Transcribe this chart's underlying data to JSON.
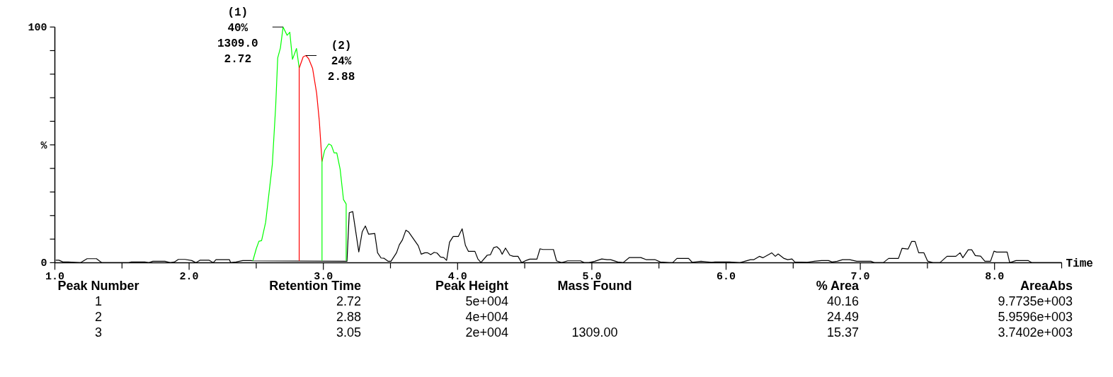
{
  "chart_data": {
    "type": "line",
    "xlabel": "Time",
    "xlim": [
      1,
      8.5
    ],
    "xticks": [
      {
        "value": 1,
        "label": "1.0"
      },
      {
        "value": 1.5,
        "label": null
      },
      {
        "value": 2,
        "label": "2.0"
      },
      {
        "value": 2.5,
        "label": null
      },
      {
        "value": 3,
        "label": "3.0"
      },
      {
        "value": 3.5,
        "label": null
      },
      {
        "value": 4,
        "label": "4.0"
      },
      {
        "value": 4.5,
        "label": null
      },
      {
        "value": 5,
        "label": "5.0"
      },
      {
        "value": 5.5,
        "label": null
      },
      {
        "value": 6,
        "label": "6.0"
      },
      {
        "value": 6.5,
        "label": null
      },
      {
        "value": 7,
        "label": "7.0"
      },
      {
        "value": 7.5,
        "label": null
      },
      {
        "value": 8,
        "label": "8.0"
      },
      {
        "value": 8.5,
        "label": null
      }
    ],
    "ylim": [
      0,
      100
    ],
    "yticks": [
      0,
      {
        "value": 10,
        "label": null
      },
      {
        "value": 20,
        "label": null
      },
      {
        "value": 30,
        "label": null
      },
      {
        "value": 40,
        "label": null
      },
      {
        "value": 50,
        "label": "%"
      },
      {
        "value": 60,
        "label": null
      },
      {
        "value": 70,
        "label": null
      },
      {
        "value": 80,
        "label": null
      },
      {
        "value": 90,
        "label": null
      },
      100
    ],
    "series": [
      {
        "color": "#000000",
        "x": [
          1.006,
          1.03,
          1.06,
          1.1,
          1.19,
          1.24,
          1.31,
          1.35,
          1.55,
          1.57,
          1.67,
          1.7,
          1.73,
          1.82,
          1.86,
          1.89,
          1.92,
          1.97,
          2.02,
          2.05,
          2.08,
          2.15,
          2.18,
          2.2,
          2.3,
          2.31,
          2.35,
          2.4,
          2.46,
          2.475,
          3.176,
          3.193,
          3.219,
          3.264,
          3.29,
          3.313,
          3.337,
          3.383,
          3.404,
          3.43,
          3.451,
          3.483,
          3.504,
          3.545,
          3.566,
          3.589,
          3.615,
          3.636,
          3.707,
          3.729,
          3.756,
          3.777,
          3.8,
          3.826,
          3.847,
          3.873,
          3.897,
          3.918,
          3.94,
          3.967,
          4.005,
          4.034,
          4.058,
          4.081,
          4.129,
          4.151,
          4.174,
          4.221,
          4.245,
          4.269,
          4.292,
          4.315,
          4.332,
          4.357,
          4.389,
          4.415,
          4.45,
          4.477,
          4.512,
          4.538,
          4.591,
          4.614,
          4.635,
          4.714,
          4.737,
          4.775,
          4.82,
          4.916,
          4.943,
          4.978,
          5.022,
          5.074,
          5.114,
          5.14,
          5.193,
          5.233,
          5.28,
          5.365,
          5.404,
          5.47,
          5.51,
          5.576,
          5.602,
          5.634,
          5.721,
          5.747,
          5.813,
          5.892,
          5.918,
          6.024,
          6.103,
          6.182,
          6.208,
          6.248,
          6.274,
          6.34,
          6.367,
          6.388,
          6.432,
          6.459,
          6.491,
          6.512,
          6.604,
          6.657,
          6.71,
          6.763,
          6.789,
          6.828,
          6.868,
          6.921,
          6.973,
          7.079,
          7.105,
          7.171,
          7.211,
          7.284,
          7.311,
          7.356,
          7.382,
          7.408,
          7.435,
          7.474,
          7.501,
          7.54,
          7.593,
          7.646,
          7.712,
          7.743,
          7.764,
          7.804,
          7.83,
          7.857,
          7.896,
          7.928,
          7.97,
          7.996,
          8.015,
          8.094,
          8.113,
          8.16,
          8.252,
          8.278,
          8.5
        ],
        "values": [
          1.05,
          1.05,
          0.3,
          0.3,
          0,
          1.7,
          1.7,
          0,
          0,
          0.3,
          0.3,
          0,
          0.6,
          0.6,
          0,
          0.3,
          1.4,
          1.4,
          0.9,
          0,
          1.05,
          1.05,
          0,
          1.3,
          1.3,
          0,
          0.3,
          0.9,
          0.9,
          0.8,
          0.6,
          21.2,
          21.7,
          4.6,
          13.2,
          15.6,
          12.1,
          12.4,
          4.2,
          2,
          1.9,
          0.6,
          0.6,
          4.2,
          7.6,
          9.7,
          13.8,
          13,
          7.2,
          3.6,
          4.2,
          4.2,
          3.4,
          4.4,
          4.1,
          2.4,
          2.2,
          1,
          8.7,
          11.1,
          11.1,
          14.4,
          7.4,
          4.8,
          4.8,
          1.6,
          0.1,
          3.2,
          3.4,
          6.4,
          6.8,
          5.6,
          3.6,
          6.2,
          3.2,
          2.7,
          2.7,
          0,
          1,
          1.5,
          1.5,
          5.9,
          5.6,
          5.6,
          0.8,
          0,
          0.8,
          0.8,
          0,
          0,
          0.6,
          1.6,
          1.3,
          1.3,
          0.3,
          0,
          2.2,
          2.2,
          1.3,
          1.3,
          0.3,
          0,
          0,
          1.8,
          1.8,
          0.2,
          0.6,
          0.2,
          0.3,
          0.3,
          0,
          1.3,
          1.3,
          2.7,
          2.1,
          4.2,
          2.7,
          3.7,
          1.8,
          1.3,
          1.6,
          0.3,
          0.2,
          0.6,
          0.9,
          0.9,
          0.3,
          0.6,
          1.3,
          1.3,
          0.6,
          0.6,
          0,
          0,
          1.8,
          1.8,
          6.1,
          5.8,
          9,
          9,
          4.2,
          4.2,
          0.7,
          0,
          0,
          2.7,
          2.7,
          4.2,
          2.1,
          5.5,
          5.5,
          3,
          2.8,
          0.6,
          0.6,
          4.9,
          4.5,
          4.5,
          0,
          0.9,
          0.9,
          0,
          0
        ]
      },
      {
        "color": "#00ff00",
        "x": [
          2.475,
          2.5,
          2.52,
          2.54,
          2.57,
          2.62,
          2.645,
          2.66,
          2.68,
          2.7,
          2.73,
          2.75,
          2.77,
          2.8,
          2.82
        ],
        "values": [
          0.8,
          5.9,
          9.1,
          9.4,
          17.1,
          41.8,
          66.5,
          86.9,
          91.1,
          100,
          96.5,
          97.8,
          86.3,
          90.9,
          82.6
        ]
      },
      {
        "color": "#ff0000",
        "x": [
          2.82,
          2.82,
          2.85,
          2.87,
          2.89,
          2.92,
          2.95,
          2.97,
          2.99
        ],
        "values": [
          0.8,
          82.6,
          87.4,
          87.9,
          86.6,
          82.4,
          71.9,
          60.1,
          42.9
        ]
      },
      {
        "color": "#00ff00",
        "x": [
          2.99,
          2.99,
          3.01,
          3.04,
          3.06,
          3.08,
          3.1,
          3.125,
          3.15,
          3.17,
          3.17
        ],
        "values": [
          0.9,
          42.9,
          47.7,
          50.4,
          49.8,
          46.6,
          46.6,
          39.7,
          26.8,
          24.9,
          0.9
        ]
      }
    ],
    "annotations": [
      {
        "text": "(1)\n40%\n1309.0\n2.72",
        "x": 2.7,
        "y": 100
      },
      {
        "text": "(2)\n24%\n2.88",
        "x": 2.87,
        "y": 87.9
      },
      "Peak Number\tRetention Time\tPeak Height\tMass Found\t% Area\tAreaAbs",
      "1\t2.72\t5e+004\t\t40.16\t9.7735e+003",
      "2\t2.88\t4e+004\t\t24.49\t5.9596e+003",
      "3\t3.05\t2e+004\t1309.00\t15.37\t3.7402e+003"
    ]
  }
}
